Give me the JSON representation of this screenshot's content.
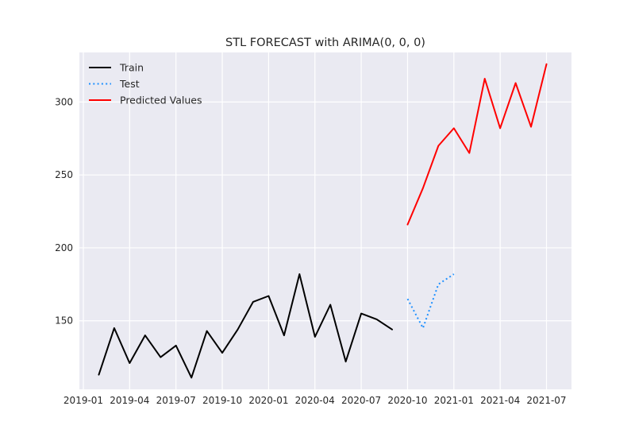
{
  "chart_data": {
    "type": "line",
    "title": "STL FORECAST with ARIMA(0, 0, 0)",
    "xlabel": "",
    "ylabel": "",
    "ylim": [
      103,
      334
    ],
    "yticks": [
      150,
      200,
      250,
      300
    ],
    "xticks": [
      "2019-01",
      "2019-04",
      "2019-07",
      "2019-10",
      "2020-01",
      "2020-04",
      "2020-07",
      "2020-10",
      "2021-01",
      "2021-04",
      "2021-07"
    ],
    "grid": true,
    "legend_position": "top-left",
    "series": [
      {
        "name": "Train",
        "style": "solid",
        "color": "#000000",
        "x": [
          "2019-02",
          "2019-03",
          "2019-04",
          "2019-05",
          "2019-06",
          "2019-07",
          "2019-08",
          "2019-09",
          "2019-10",
          "2019-11",
          "2019-12",
          "2020-01",
          "2020-02",
          "2020-03",
          "2020-04",
          "2020-05",
          "2020-06",
          "2020-07",
          "2020-08",
          "2020-09"
        ],
        "values": [
          113,
          145,
          121,
          140,
          125,
          133,
          111,
          143,
          128,
          144,
          163,
          167,
          140,
          182,
          139,
          161,
          122,
          155,
          151,
          144
        ]
      },
      {
        "name": "Test",
        "style": "dotted",
        "color": "#1e90ff",
        "x": [
          "2020-10",
          "2020-11",
          "2020-12",
          "2021-01"
        ],
        "values": [
          165,
          145,
          175,
          182
        ]
      },
      {
        "name": "Predicted Values",
        "style": "solid",
        "color": "#ff0000",
        "x": [
          "2020-10",
          "2020-11",
          "2020-12",
          "2021-01",
          "2021-02",
          "2021-03",
          "2021-04",
          "2021-05",
          "2021-06",
          "2021-07"
        ],
        "values": [
          216,
          241,
          270,
          282,
          265,
          316,
          282,
          313,
          283,
          326
        ]
      }
    ]
  }
}
